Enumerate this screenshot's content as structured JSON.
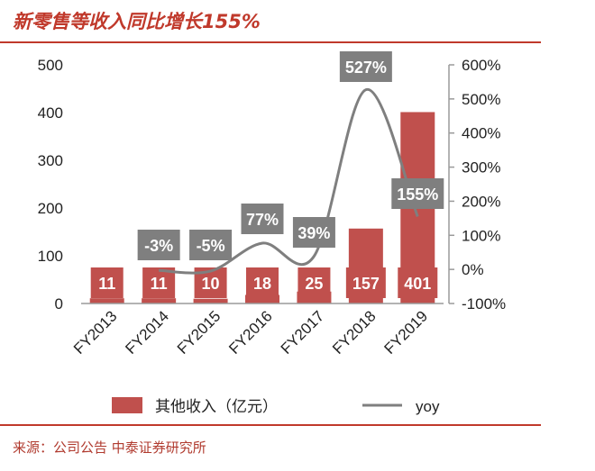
{
  "title": "新零售等收入同比增长155%",
  "source": "来源：公司公告  中泰证券研究所",
  "chart_data": {
    "type": "bar",
    "categories": [
      "FY2013",
      "FY2014",
      "FY2015",
      "FY2016",
      "FY2017",
      "FY2018",
      "FY2019"
    ],
    "series": [
      {
        "name": "其他收入（亿元）",
        "type": "bar",
        "axis": "left",
        "values": [
          11,
          11,
          10,
          18,
          25,
          157,
          401
        ],
        "labels": [
          "11",
          "11",
          "10",
          "18",
          "25",
          "157",
          "401"
        ],
        "color": "#c0504d"
      },
      {
        "name": "yoy",
        "type": "line",
        "axis": "right",
        "values": [
          null,
          -3,
          -5,
          77,
          39,
          527,
          155
        ],
        "labels": [
          "",
          "-3%",
          "-5%",
          "77%",
          "39%",
          "527%",
          "155%"
        ],
        "color": "#7f7f7f"
      }
    ],
    "y_left": {
      "min": 0,
      "max": 500,
      "ticks": [
        "0",
        "100",
        "200",
        "300",
        "400",
        "500"
      ]
    },
    "y_right": {
      "min": -100,
      "max": 600,
      "ticks": [
        "-100%",
        "0%",
        "100%",
        "200%",
        "300%",
        "400%",
        "500%",
        "600%"
      ]
    },
    "grid": false,
    "legend": "bottom"
  }
}
